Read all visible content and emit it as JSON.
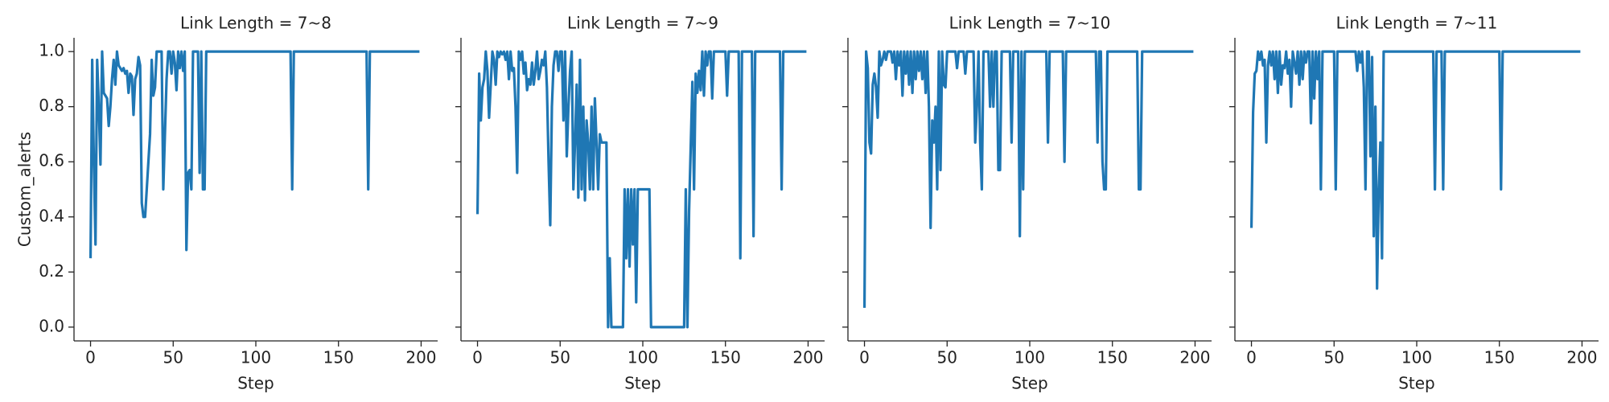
{
  "chart_data": [
    {
      "type": "line",
      "title": "Link Length = 7~8",
      "x_label": "Step",
      "y_label": "Custom_alerts",
      "show_ytick_labels": true,
      "xlim": [
        -10,
        210
      ],
      "xticks": [
        0,
        50,
        100,
        150,
        200
      ],
      "ylim": [
        -0.05,
        1.05
      ],
      "yticks": [
        {
          "value": 0,
          "label": "0.0"
        },
        0.2,
        0.4,
        0.6,
        0.8,
        {
          "value": 1,
          "label": "1.0"
        }
      ],
      "x": [
        0,
        1,
        2,
        3,
        4,
        5,
        6,
        7,
        8,
        9,
        10,
        11,
        12,
        13,
        14,
        15,
        16,
        17,
        18,
        19,
        20,
        21,
        22,
        23,
        24,
        25,
        26,
        27,
        28,
        29,
        30,
        31,
        32,
        33,
        36,
        37,
        38,
        39,
        40,
        43,
        44,
        46,
        47,
        48,
        49,
        50,
        51,
        52,
        53,
        54,
        55,
        56,
        57,
        58,
        59,
        60,
        61,
        62,
        65,
        66,
        67,
        68,
        69,
        70,
        121,
        122,
        123,
        167,
        168,
        169,
        199
      ],
      "series": [
        {
          "color": "#1f77b4",
          "values": [
            0.25,
            0.97,
            0.6,
            0.3,
            0.97,
            0.8,
            0.59,
            1.0,
            0.85,
            0.84,
            0.83,
            0.73,
            0.8,
            0.9,
            0.97,
            0.88,
            1.0,
            0.95,
            0.94,
            0.93,
            0.94,
            0.92,
            0.93,
            0.85,
            0.92,
            0.91,
            0.77,
            0.9,
            0.92,
            0.98,
            0.95,
            0.45,
            0.4,
            0.4,
            0.7,
            0.97,
            0.84,
            0.87,
            1.0,
            1.0,
            0.5,
            0.9,
            1.0,
            1.0,
            0.92,
            1.0,
            0.96,
            0.86,
            1.0,
            0.94,
            1.0,
            0.93,
            1.0,
            0.28,
            0.56,
            0.57,
            0.5,
            1.0,
            1.0,
            0.56,
            1.0,
            0.5,
            0.5,
            1.0,
            1.0,
            0.5,
            1.0,
            1.0,
            0.5,
            1.0,
            1.0
          ]
        }
      ]
    },
    {
      "type": "line",
      "title": "Link Length = 7~9",
      "x_label": "Step",
      "show_ytick_labels": false,
      "xlim": [
        -10,
        210
      ],
      "xticks": [
        0,
        50,
        100,
        150,
        200
      ],
      "ylim": [
        -0.05,
        1.05
      ],
      "yticks": [
        0,
        0.2,
        0.4,
        0.6,
        0.8,
        1
      ],
      "x": [
        0,
        1,
        2,
        3,
        4,
        5,
        6,
        7,
        8,
        9,
        10,
        11,
        12,
        13,
        14,
        15,
        16,
        17,
        18,
        19,
        20,
        21,
        22,
        23,
        24,
        25,
        26,
        27,
        28,
        29,
        30,
        31,
        32,
        33,
        34,
        35,
        36,
        37,
        38,
        39,
        40,
        41,
        42,
        43,
        44,
        45,
        46,
        47,
        48,
        49,
        50,
        51,
        52,
        53,
        54,
        55,
        56,
        57,
        58,
        59,
        60,
        61,
        62,
        63,
        64,
        65,
        66,
        67,
        68,
        69,
        70,
        71,
        72,
        73,
        74,
        75,
        76,
        77,
        78,
        79,
        80,
        81,
        88,
        89,
        90,
        91,
        92,
        93,
        94,
        95,
        96,
        97,
        104,
        105,
        125,
        126,
        127,
        128,
        130,
        131,
        132,
        133,
        134,
        135,
        136,
        137,
        138,
        139,
        140,
        141,
        142,
        143,
        150,
        151,
        152,
        158,
        159,
        160,
        166,
        167,
        168,
        183,
        184,
        185,
        199
      ],
      "series": [
        {
          "color": "#1f77b4",
          "values": [
            0.41,
            0.92,
            0.75,
            0.87,
            0.9,
            1.0,
            0.93,
            0.76,
            0.88,
            1.0,
            0.97,
            0.88,
            1.0,
            0.98,
            1.0,
            0.99,
            1.0,
            0.97,
            1.0,
            0.9,
            1.0,
            0.93,
            0.94,
            0.8,
            0.56,
            1.0,
            0.97,
            1.0,
            0.92,
            0.96,
            0.86,
            0.9,
            0.88,
            0.96,
            0.88,
            0.93,
            1.0,
            0.9,
            0.93,
            0.97,
            0.95,
            1.0,
            0.87,
            0.6,
            0.37,
            0.8,
            0.95,
            1.0,
            1.0,
            0.93,
            1.0,
            1.0,
            0.75,
            1.0,
            0.62,
            0.8,
            0.93,
            1.0,
            0.5,
            0.67,
            0.88,
            0.47,
            0.97,
            0.5,
            0.8,
            0.46,
            0.75,
            0.67,
            0.5,
            0.8,
            0.5,
            0.83,
            0.67,
            0.5,
            0.7,
            0.67,
            0.67,
            0.67,
            0.67,
            0.0,
            0.25,
            0.0,
            0.0,
            0.5,
            0.25,
            0.5,
            0.22,
            0.5,
            0.3,
            0.5,
            0.09,
            0.5,
            0.5,
            0.0,
            0.0,
            0.5,
            0.0,
            0.42,
            0.89,
            0.5,
            0.92,
            0.85,
            0.93,
            0.86,
            1.0,
            0.84,
            1.0,
            0.95,
            1.0,
            1.0,
            0.83,
            1.0,
            1.0,
            0.84,
            1.0,
            1.0,
            0.25,
            1.0,
            1.0,
            0.33,
            1.0,
            1.0,
            0.5,
            1.0,
            1.0
          ]
        }
      ]
    },
    {
      "type": "line",
      "title": "Link Length = 7~10",
      "x_label": "Step",
      "show_ytick_labels": false,
      "xlim": [
        -10,
        210
      ],
      "xticks": [
        0,
        50,
        100,
        150,
        200
      ],
      "ylim": [
        -0.05,
        1.05
      ],
      "yticks": [
        0,
        0.2,
        0.4,
        0.6,
        0.8,
        1
      ],
      "x": [
        0,
        1,
        2,
        3,
        4,
        5,
        6,
        7,
        8,
        9,
        10,
        11,
        12,
        13,
        14,
        15,
        16,
        17,
        18,
        19,
        20,
        21,
        22,
        23,
        24,
        25,
        26,
        27,
        28,
        29,
        30,
        31,
        32,
        33,
        34,
        35,
        36,
        37,
        38,
        39,
        40,
        41,
        42,
        43,
        44,
        45,
        46,
        47,
        48,
        49,
        50,
        55,
        56,
        57,
        60,
        61,
        62,
        66,
        67,
        68,
        69,
        70,
        71,
        72,
        75,
        76,
        77,
        78,
        79,
        80,
        81,
        82,
        83,
        88,
        89,
        90,
        93,
        94,
        95,
        96,
        97,
        110,
        111,
        112,
        120,
        121,
        122,
        140,
        141,
        142,
        143,
        144,
        145,
        146,
        147,
        165,
        166,
        167,
        168,
        199
      ],
      "series": [
        {
          "color": "#1f77b4",
          "values": [
            0.07,
            1.0,
            0.94,
            0.67,
            0.63,
            0.88,
            0.92,
            0.87,
            0.76,
            1.0,
            0.95,
            0.97,
            1.0,
            0.97,
            1.0,
            1.0,
            1.0,
            0.96,
            1.0,
            0.9,
            1.0,
            0.95,
            1.0,
            0.84,
            1.0,
            0.92,
            1.0,
            0.88,
            1.0,
            0.85,
            1.0,
            0.9,
            1.0,
            0.93,
            1.0,
            0.9,
            1.0,
            0.85,
            1.0,
            0.8,
            0.36,
            0.75,
            0.67,
            0.8,
            0.5,
            1.0,
            0.57,
            1.0,
            0.88,
            0.87,
            1.0,
            1.0,
            0.94,
            1.0,
            1.0,
            0.92,
            1.0,
            1.0,
            0.67,
            0.8,
            1.0,
            0.67,
            0.5,
            1.0,
            1.0,
            0.8,
            1.0,
            0.8,
            1.0,
            1.0,
            0.57,
            0.57,
            1.0,
            1.0,
            0.67,
            1.0,
            1.0,
            0.33,
            1.0,
            0.5,
            1.0,
            1.0,
            0.67,
            1.0,
            1.0,
            0.6,
            1.0,
            1.0,
            0.67,
            1.0,
            1.0,
            0.6,
            0.5,
            0.5,
            1.0,
            1.0,
            0.5,
            0.5,
            1.0,
            1.0
          ]
        }
      ]
    },
    {
      "type": "line",
      "title": "Link Length = 7~11",
      "x_label": "Step",
      "show_ytick_labels": false,
      "xlim": [
        -10,
        210
      ],
      "xticks": [
        0,
        50,
        100,
        150,
        200
      ],
      "ylim": [
        -0.05,
        1.05
      ],
      "yticks": [
        0,
        0.2,
        0.4,
        0.6,
        0.8,
        1
      ],
      "x": [
        0,
        1,
        2,
        3,
        4,
        5,
        6,
        7,
        8,
        9,
        10,
        11,
        12,
        13,
        14,
        15,
        16,
        17,
        18,
        19,
        20,
        21,
        22,
        23,
        24,
        25,
        26,
        27,
        28,
        29,
        30,
        31,
        32,
        33,
        34,
        35,
        36,
        37,
        38,
        39,
        40,
        41,
        42,
        43,
        50,
        51,
        52,
        63,
        64,
        65,
        66,
        67,
        68,
        69,
        70,
        71,
        72,
        73,
        74,
        75,
        76,
        77,
        78,
        79,
        80,
        110,
        111,
        112,
        115,
        116,
        117,
        150,
        151,
        152,
        199
      ],
      "series": [
        {
          "color": "#1f77b4",
          "values": [
            0.36,
            0.78,
            0.92,
            0.93,
            1.0,
            0.97,
            1.0,
            0.95,
            0.97,
            0.67,
            0.95,
            1.0,
            0.95,
            1.0,
            0.9,
            1.0,
            0.85,
            1.0,
            0.88,
            0.95,
            0.94,
            1.0,
            0.92,
            0.97,
            0.8,
            1.0,
            0.96,
            0.92,
            1.0,
            0.88,
            1.0,
            0.9,
            1.0,
            0.96,
            1.0,
            1.0,
            0.74,
            1.0,
            0.83,
            1.0,
            0.9,
            1.0,
            0.5,
            1.0,
            1.0,
            0.5,
            1.0,
            1.0,
            0.93,
            1.0,
            0.96,
            1.0,
            0.87,
            0.5,
            1.0,
            1.0,
            0.62,
            0.98,
            0.33,
            0.8,
            0.14,
            0.5,
            0.67,
            0.25,
            1.0,
            1.0,
            0.5,
            1.0,
            1.0,
            0.5,
            1.0,
            1.0,
            0.5,
            1.0,
            1.0
          ]
        }
      ]
    }
  ]
}
